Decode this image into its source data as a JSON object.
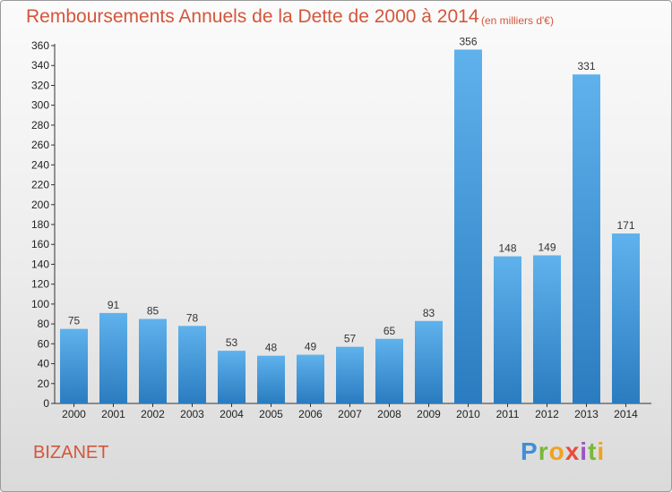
{
  "title": "Remboursements Annuels de la Dette de 2000 à 2014",
  "subtitle": "(en milliers d'€)",
  "town": "BIZANET",
  "logo": {
    "text": "Proxiti"
  },
  "chart_data": {
    "type": "bar",
    "title": "Remboursements Annuels de la Dette de 2000 à 2014",
    "subtitle": "(en milliers d'€)",
    "xlabel": "",
    "ylabel": "",
    "categories": [
      "2000",
      "2001",
      "2002",
      "2003",
      "2004",
      "2005",
      "2006",
      "2007",
      "2008",
      "2009",
      "2010",
      "2011",
      "2012",
      "2013",
      "2014"
    ],
    "values": [
      75,
      91,
      85,
      78,
      53,
      48,
      49,
      57,
      65,
      83,
      356,
      148,
      149,
      331,
      171
    ],
    "ylim": [
      0,
      360
    ],
    "yticks": [
      0,
      20,
      40,
      60,
      80,
      100,
      120,
      140,
      160,
      180,
      200,
      220,
      240,
      260,
      280,
      300,
      320,
      340,
      360
    ],
    "grid": false,
    "bar_color": "#3d95d8"
  }
}
